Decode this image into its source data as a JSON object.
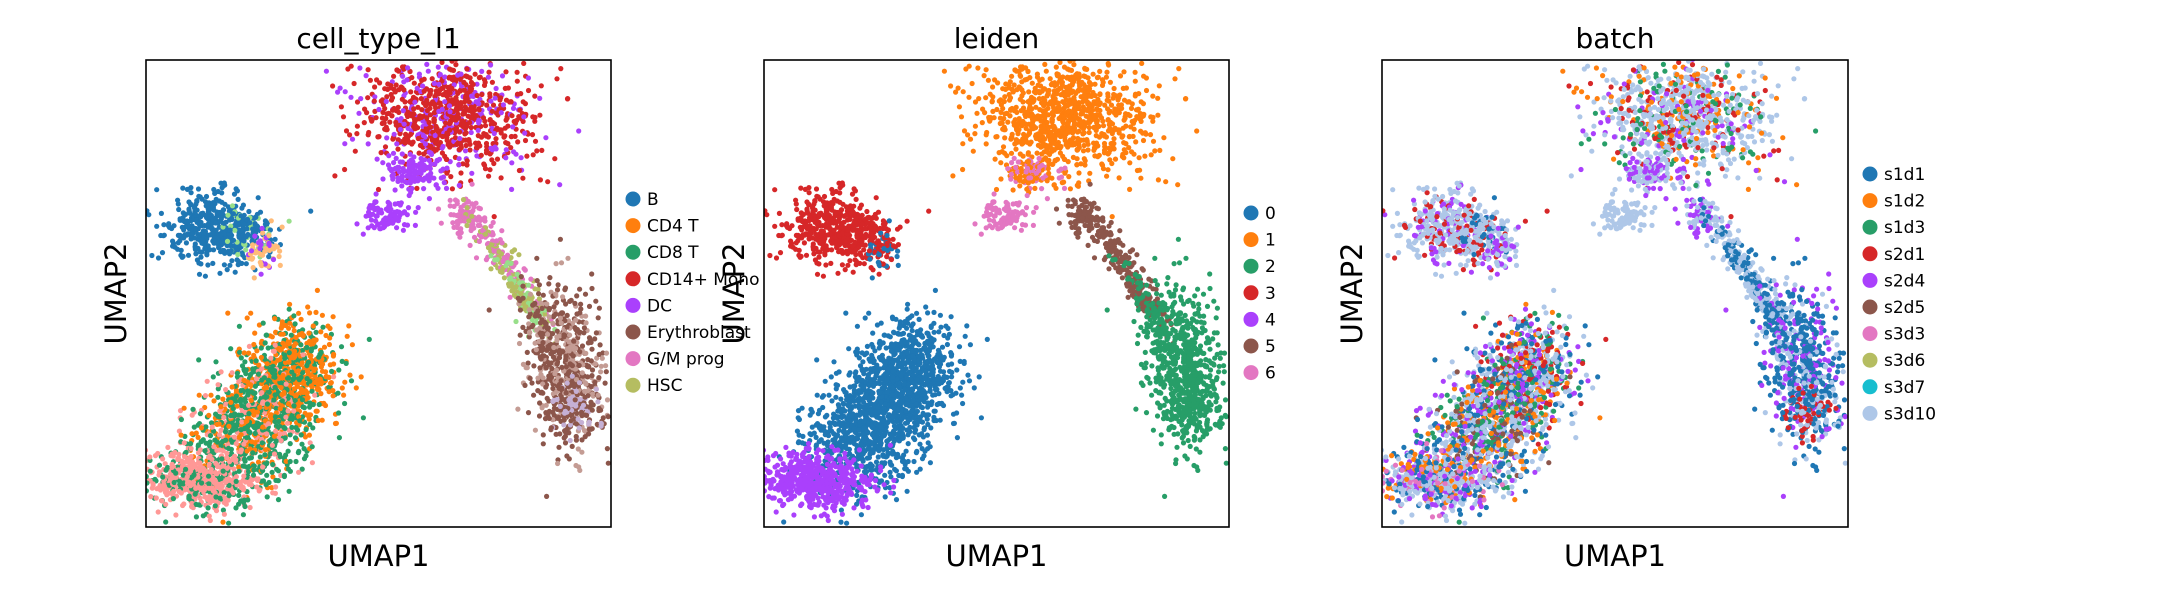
{
  "chart_data": [
    {
      "type": "scatter",
      "title": "cell_type_l1",
      "xlabel": "UMAP1",
      "ylabel": "UMAP2",
      "xticks": [],
      "yticks": [],
      "grid": false,
      "legend_position": "right",
      "legend": [
        {
          "label": "B",
          "color": "#1f77b4"
        },
        {
          "label": "CD4 T",
          "color": "#ff7f0e"
        },
        {
          "label": "CD8 T",
          "color": "#279e68"
        },
        {
          "label": "CD14+ Mono",
          "color": "#d62728"
        },
        {
          "label": "DC",
          "color": "#aa40fc"
        },
        {
          "label": "Erythroblast",
          "color": "#8c564b"
        },
        {
          "label": "G/M prog",
          "color": "#e377c2"
        },
        {
          "label": "HSC",
          "color": "#b5bd61"
        }
      ]
    },
    {
      "type": "scatter",
      "title": "leiden",
      "xlabel": "UMAP1",
      "ylabel": "UMAP2",
      "xticks": [],
      "yticks": [],
      "grid": false,
      "legend_position": "right",
      "legend": [
        {
          "label": "0",
          "color": "#1f77b4"
        },
        {
          "label": "1",
          "color": "#ff7f0e"
        },
        {
          "label": "2",
          "color": "#279e68"
        },
        {
          "label": "3",
          "color": "#d62728"
        },
        {
          "label": "4",
          "color": "#aa40fc"
        },
        {
          "label": "5",
          "color": "#8c564b"
        },
        {
          "label": "6",
          "color": "#e377c2"
        }
      ]
    },
    {
      "type": "scatter",
      "title": "batch",
      "xlabel": "UMAP1",
      "ylabel": "UMAP2",
      "xticks": [],
      "yticks": [],
      "grid": false,
      "legend_position": "right",
      "legend": [
        {
          "label": "s1d1",
          "color": "#1f77b4"
        },
        {
          "label": "s1d2",
          "color": "#ff7f0e"
        },
        {
          "label": "s1d3",
          "color": "#279e68"
        },
        {
          "label": "s2d1",
          "color": "#d62728"
        },
        {
          "label": "s2d4",
          "color": "#aa40fc"
        },
        {
          "label": "s2d5",
          "color": "#8c564b"
        },
        {
          "label": "s3d3",
          "color": "#e377c2"
        },
        {
          "label": "s3d6",
          "color": "#b5bd61"
        },
        {
          "label": "s3d7",
          "color": "#17becf"
        },
        {
          "label": "s3d10",
          "color": "#aec7e8"
        }
      ]
    }
  ]
}
